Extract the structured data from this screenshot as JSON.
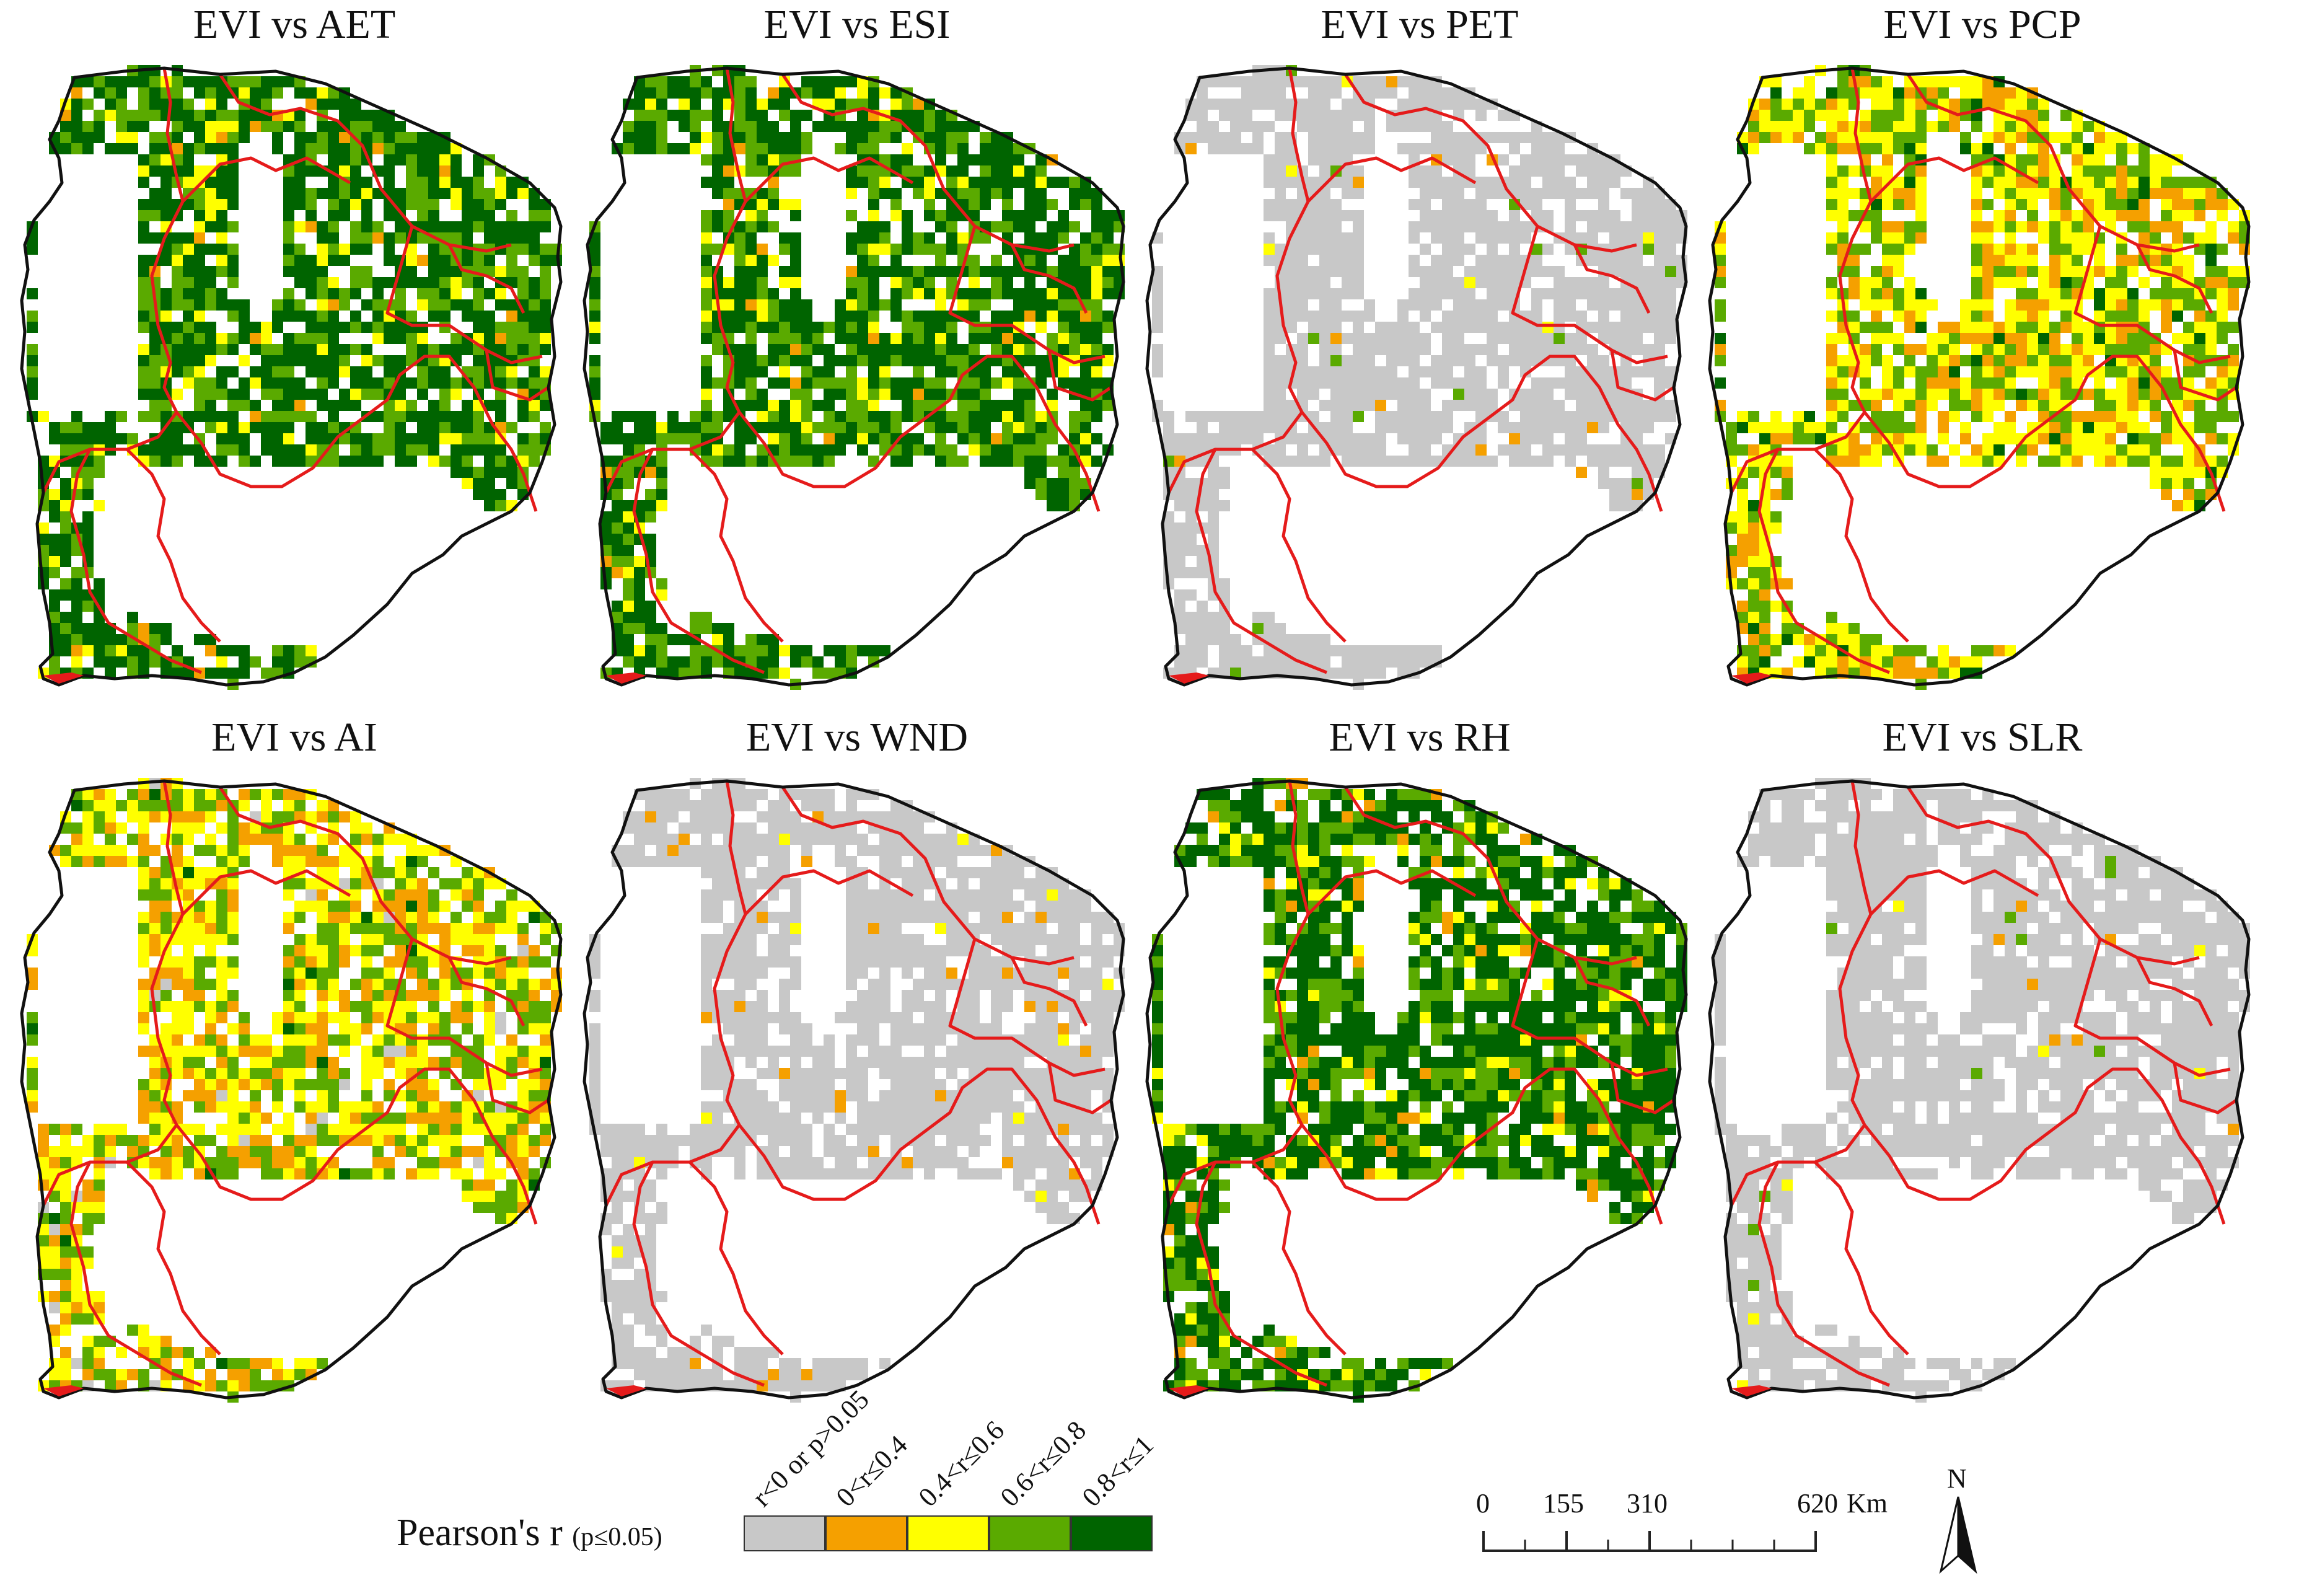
{
  "panels": [
    {
      "title": "EVI vs AET",
      "mix": {
        "gray": 0.0,
        "orange": 0.02,
        "yellow": 0.1,
        "lightgreen": 0.3,
        "green": 0.58
      }
    },
    {
      "title": "EVI vs ESI",
      "mix": {
        "gray": 0.0,
        "orange": 0.02,
        "yellow": 0.1,
        "lightgreen": 0.33,
        "green": 0.55
      }
    },
    {
      "title": "EVI vs PET",
      "mix": {
        "gray": 0.97,
        "orange": 0.01,
        "yellow": 0.01,
        "lightgreen": 0.01,
        "green": 0.0
      }
    },
    {
      "title": "EVI vs PCP",
      "mix": {
        "gray": 0.0,
        "orange": 0.22,
        "yellow": 0.43,
        "lightgreen": 0.3,
        "green": 0.05
      }
    },
    {
      "title": "EVI vs AI",
      "mix": {
        "gray": 0.02,
        "orange": 0.28,
        "yellow": 0.38,
        "lightgreen": 0.3,
        "green": 0.02
      }
    },
    {
      "title": "EVI vs WND",
      "mix": {
        "gray": 0.96,
        "orange": 0.03,
        "yellow": 0.01,
        "lightgreen": 0.0,
        "green": 0.0
      }
    },
    {
      "title": "EVI vs RH",
      "mix": {
        "gray": 0.0,
        "orange": 0.03,
        "yellow": 0.08,
        "lightgreen": 0.29,
        "green": 0.6
      }
    },
    {
      "title": "EVI vs SLR",
      "mix": {
        "gray": 0.97,
        "orange": 0.01,
        "yellow": 0.01,
        "lightgreen": 0.01,
        "green": 0.0
      }
    }
  ],
  "legend": {
    "title": "Pearson's r",
    "subtitle": "(p≤0.05)",
    "classes": [
      {
        "label": "r<0 or p>0.05",
        "color": "#c8c8c8"
      },
      {
        "label": "0<r≤0.4",
        "color": "#f5a000"
      },
      {
        "label": "0.4<r≤0.6",
        "color": "#ffff00"
      },
      {
        "label": "0.6<r≤0.8",
        "color": "#5aaa00"
      },
      {
        "label": "0.8<r≤1",
        "color": "#006400"
      }
    ]
  },
  "scale_bar": {
    "ticks": [
      "0",
      "155",
      "310",
      "620"
    ],
    "unit": "Km"
  },
  "north_arrow": {
    "label": "N",
    "icon": "north-arrow-icon"
  },
  "colors": {
    "boundary_outer": "#111111",
    "boundary_inner": "#e51b1b",
    "gray": "#c8c8c8",
    "orange": "#f5a000",
    "yellow": "#ffff00",
    "lightgreen": "#5aaa00",
    "green": "#006400"
  }
}
